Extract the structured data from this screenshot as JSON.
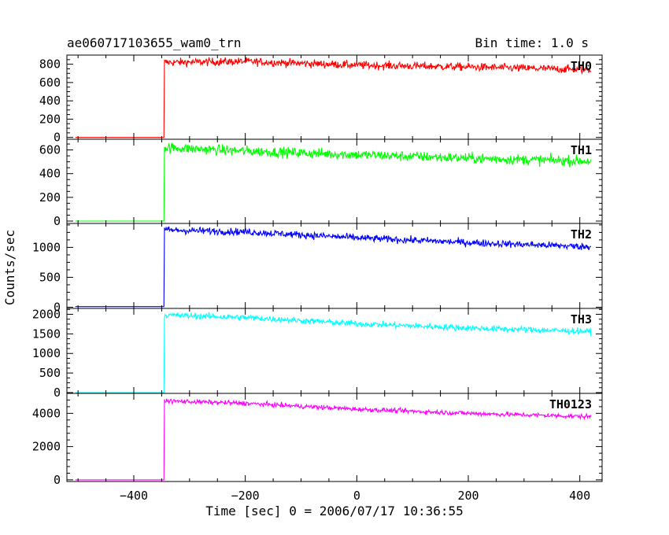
{
  "header": {
    "title": "ae060717103655_wam0_trn",
    "bin_time": "Bin time: 1.0 s"
  },
  "axes": {
    "xlabel": "Time [sec] 0 = 2006/07/17 10:36:55",
    "ylabel": "Counts/sec"
  },
  "chart_data": {
    "type": "line",
    "title": "ae060717103655_wam0_trn",
    "subtitle": "Bin time: 1.0 s",
    "xlabel": "Time [sec] 0 = 2006/07/17 10:36:55",
    "ylabel": "Counts/sec",
    "xlim": [
      -520,
      440
    ],
    "x_ticks": [
      -400,
      -200,
      0,
      200,
      400
    ],
    "x_tick_labels": [
      "−400",
      "−200",
      "0",
      "200",
      "400"
    ],
    "grid": false,
    "data_range": [
      -505,
      420
    ],
    "trigger_time": -345,
    "series": [
      {
        "name": "TH0",
        "color": "#ff0000",
        "ylim": [
          -20,
          900
        ],
        "y_ticks": [
          0,
          200,
          400,
          600,
          800
        ],
        "pre_level": 0,
        "points": [
          [
            -345,
            820
          ],
          [
            -200,
            830
          ],
          [
            0,
            790
          ],
          [
            200,
            770
          ],
          [
            420,
            740
          ]
        ],
        "noise": 22
      },
      {
        "name": "TH1",
        "color": "#00ff00",
        "ylim": [
          -20,
          690
        ],
        "y_ticks": [
          0,
          200,
          400,
          600
        ],
        "pre_level": 0,
        "points": [
          [
            -345,
            620
          ],
          [
            -200,
            590
          ],
          [
            0,
            560
          ],
          [
            200,
            530
          ],
          [
            420,
            505
          ]
        ],
        "noise": 22
      },
      {
        "name": "TH2",
        "color": "#0000ff",
        "ylim": [
          -20,
          1400
        ],
        "y_ticks": [
          0,
          500,
          1000
        ],
        "pre_level": 10,
        "points": [
          [
            -345,
            1290
          ],
          [
            -200,
            1260
          ],
          [
            0,
            1160
          ],
          [
            200,
            1080
          ],
          [
            420,
            1010
          ]
        ],
        "noise": 30
      },
      {
        "name": "TH3",
        "color": "#00ffff",
        "ylim": [
          -20,
          2150
        ],
        "y_ticks": [
          0,
          500,
          1000,
          1500,
          2000
        ],
        "pre_level": 0,
        "points": [
          [
            -345,
            1980
          ],
          [
            -200,
            1920
          ],
          [
            0,
            1760
          ],
          [
            200,
            1650
          ],
          [
            420,
            1560
          ]
        ],
        "noise": 40
      },
      {
        "name": "TH0123",
        "color": "#ff00ff",
        "ylim": [
          -100,
          5200
        ],
        "y_ticks": [
          0,
          2000,
          4000
        ],
        "pre_level": 0,
        "points": [
          [
            -345,
            4750
          ],
          [
            -200,
            4600
          ],
          [
            0,
            4250
          ],
          [
            200,
            4000
          ],
          [
            420,
            3800
          ]
        ],
        "noise": 70
      }
    ]
  }
}
